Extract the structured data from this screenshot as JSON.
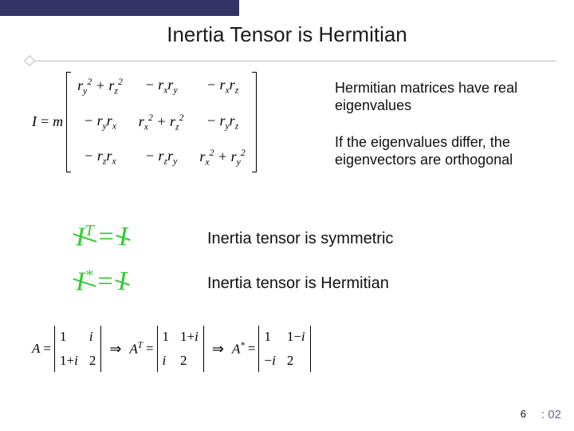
{
  "title": "Inertia Tensor is Hermitian",
  "note_hermitian": "Hermitian matrices have real eigenvalues",
  "note_eigvec": "If the eigenvalues differ, the eigenvectors are orthogonal",
  "inertia_matrix": {
    "prefix_var": "I",
    "eq_sign": "=",
    "mass": "m",
    "cells": [
      "r_y^2 + r_z^2",
      "− r_x r_y",
      "− r_x r_z",
      "− r_y r_x",
      "r_x^2 + r_z^2",
      "− r_y r_z",
      "− r_z r_x",
      "− r_z r_y",
      "r_x^2 + r_y^2"
    ]
  },
  "symmetric_eq": {
    "lhs": "I",
    "sup": "T",
    "rhs": "I"
  },
  "hermitian_eq": {
    "lhs": "I",
    "sup": "*",
    "rhs": "I"
  },
  "label_symmetric": "Inertia tensor is symmetric",
  "label_hermitian": "Inertia tensor is Hermitian",
  "example": {
    "A": [
      [
        "1",
        "i"
      ],
      [
        "1+i",
        "2"
      ]
    ],
    "AT": [
      [
        "1",
        "1+i"
      ],
      [
        "i",
        "2"
      ]
    ],
    "Astar": [
      [
        "1",
        "1−i"
      ],
      [
        "−i",
        "2"
      ]
    ],
    "labels": {
      "A": "A",
      "AT_sup": "T",
      "Astar_sup": "*",
      "arrow": "⇒",
      "eq": "="
    }
  },
  "page_number": "6",
  "timecode": ": 02",
  "colors": {
    "accent_green": "#33cc33",
    "top_bar": "#333366",
    "timecode": "#666699"
  }
}
